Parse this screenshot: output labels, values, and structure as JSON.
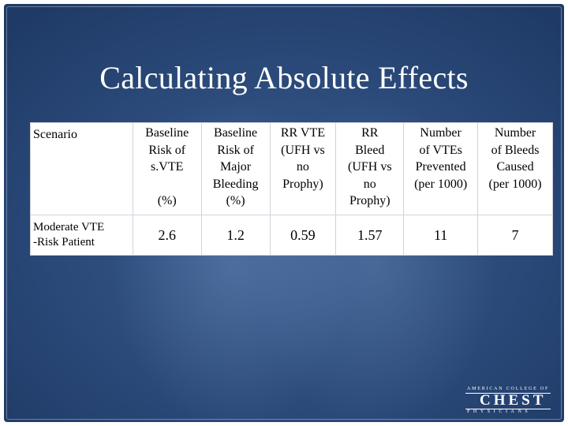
{
  "title": "Calculating Absolute Effects",
  "table": {
    "headers": [
      {
        "lines": [
          "Scenario"
        ]
      },
      {
        "lines": [
          "Baseline",
          "Risk of",
          "s.VTE",
          "",
          "(%)"
        ]
      },
      {
        "lines": [
          "Baseline",
          "Risk of",
          "Major",
          "Bleeding",
          "(%)"
        ]
      },
      {
        "lines": [
          "RR VTE",
          "(UFH vs",
          "no",
          "Prophy)"
        ]
      },
      {
        "lines": [
          "RR",
          "Bleed",
          "(UFH vs",
          "no",
          "Prophy)"
        ]
      },
      {
        "lines": [
          "Number",
          "of VTEs",
          "Prevented",
          "(per 1000)"
        ]
      },
      {
        "lines": [
          "Number",
          "of Bleeds",
          "Caused",
          "(per 1000)"
        ]
      }
    ],
    "row": {
      "label_lines": [
        "Moderate VTE",
        "-Risk Patient"
      ],
      "values": [
        "2.6",
        "1.2",
        "0.59",
        "1.57",
        "11",
        "7"
      ]
    }
  },
  "logo": {
    "top_text": "AMERICAN COLLEGE OF",
    "word": "CHEST",
    "bottom_text": "PHYSICIANS"
  }
}
